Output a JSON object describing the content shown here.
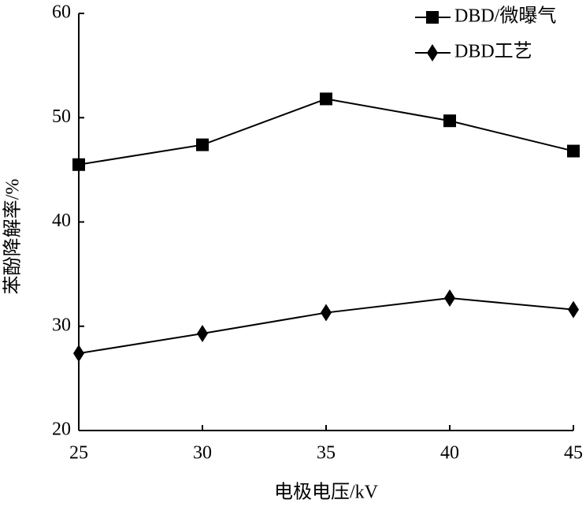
{
  "chart_data": {
    "type": "line",
    "x_label": "电极电压/kV",
    "y_label": "苯酚降解率/%",
    "x": [
      25,
      30,
      35,
      40,
      45
    ],
    "series": [
      {
        "name": "DBD/微曝气",
        "color": "#000000",
        "marker": "square",
        "values": [
          45.5,
          47.4,
          51.8,
          49.7,
          46.8
        ]
      },
      {
        "name": "DBD工艺",
        "color": "#000000",
        "marker": "diamond",
        "values": [
          27.4,
          29.3,
          31.3,
          32.7,
          31.6
        ]
      }
    ],
    "xlim": [
      25,
      45
    ],
    "xticks": [
      25,
      30,
      35,
      40,
      45
    ],
    "ylim": [
      20,
      60
    ],
    "yticks": [
      20,
      30,
      40,
      50,
      60
    ],
    "legend": "upper right"
  }
}
